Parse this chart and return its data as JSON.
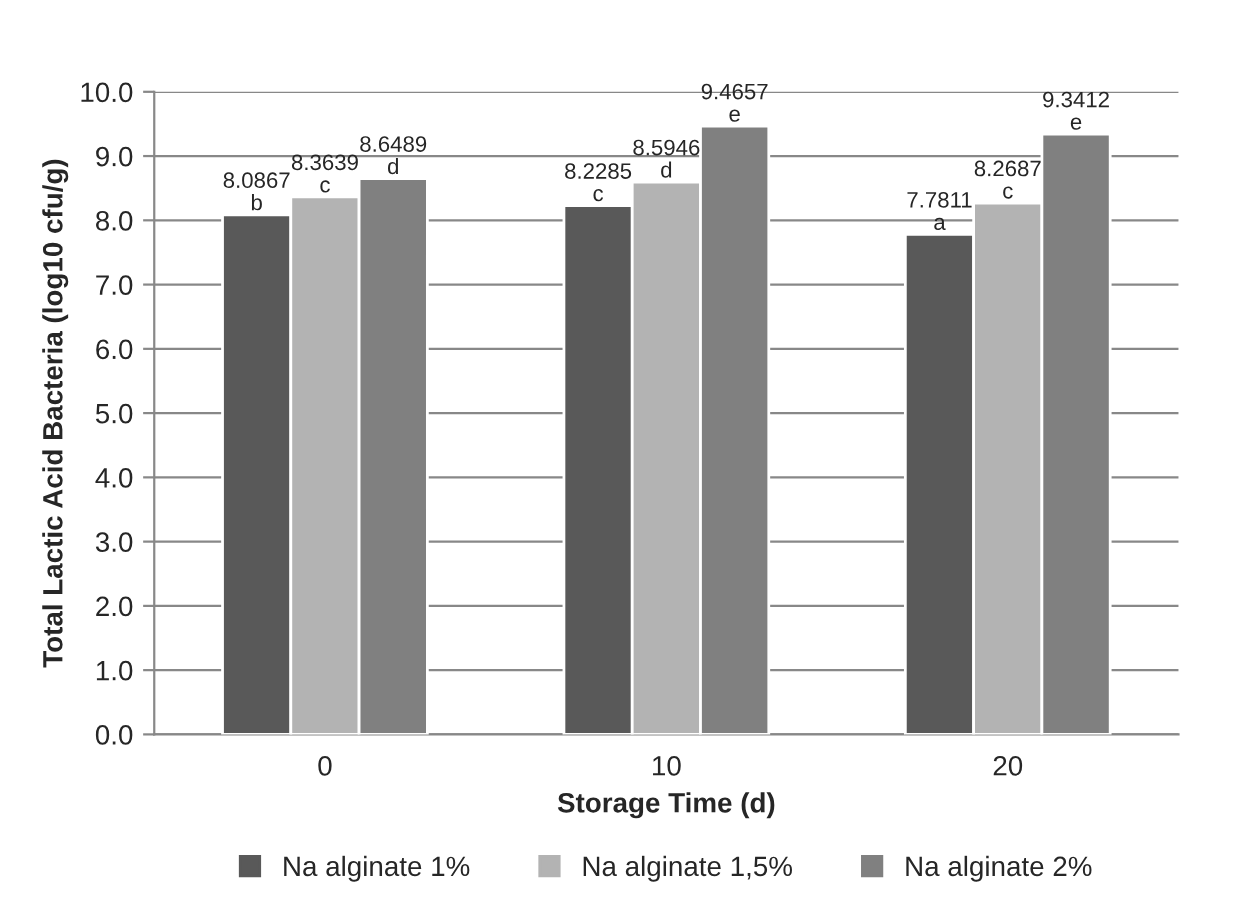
{
  "chart_data": {
    "type": "bar",
    "xlabel": "Storage Time (d)",
    "ylabel": "Total Lactic Acid Bacteria (log10 cfu/g)",
    "categories": [
      "0",
      "10",
      "20"
    ],
    "series": [
      {
        "name": "Na alginate 1%",
        "color": "#595959",
        "values": [
          8.0867,
          8.2285,
          7.7811
        ],
        "value_labels": [
          "8.0867\nb",
          "8.2285\nc",
          "7.7811\na"
        ]
      },
      {
        "name": "Na alginate 1,5%",
        "color": "#b3b3b3",
        "values": [
          8.3639,
          8.5946,
          8.2687
        ],
        "value_labels": [
          "8.3639\nc",
          "8.5946\nd",
          "8.2687\nc"
        ]
      },
      {
        "name": "Na alginate 2%",
        "color": "#808080",
        "values": [
          8.6489,
          9.4657,
          9.3412
        ],
        "value_labels": [
          "8.6489\nd",
          "9.4657\ne",
          "9.3412\ne"
        ]
      }
    ],
    "ylim": [
      0,
      10
    ],
    "yticks": [
      {
        "value": 0,
        "label": "0.0"
      },
      {
        "value": 1,
        "label": "1.0"
      },
      {
        "value": 2,
        "label": "2.0"
      },
      {
        "value": 3,
        "label": "3.0"
      },
      {
        "value": 4,
        "label": "4.0"
      },
      {
        "value": 5,
        "label": "5.0"
      },
      {
        "value": 6,
        "label": "6.0"
      },
      {
        "value": 7,
        "label": "7.0"
      },
      {
        "value": 8,
        "label": "8.0"
      },
      {
        "value": 9,
        "label": "9.0"
      },
      {
        "value": 10,
        "label": "10.0"
      }
    ],
    "grid": "y",
    "legend": "bottom"
  }
}
